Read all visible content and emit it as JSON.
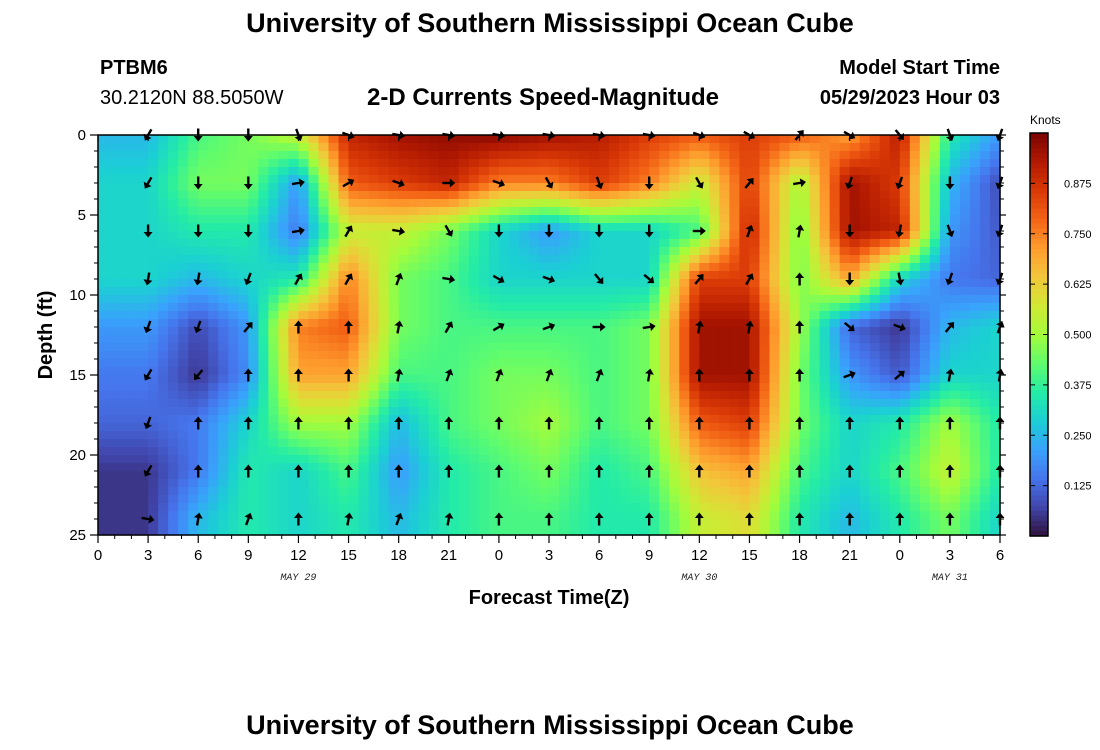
{
  "header": {
    "title": "University of Southern Mississippi Ocean Cube",
    "station": "PTBM6",
    "coords": "30.2120N  88.5050W",
    "plot_title": "2-D Currents Speed-Magnitude",
    "model_label": "Model Start Time",
    "model_time": "05/29/2023 Hour 03"
  },
  "footer": {
    "title": "University of Southern Mississippi Ocean Cube"
  },
  "colors": {
    "scale": [
      "#30123b",
      "#4145ab",
      "#4675ed",
      "#39a2fc",
      "#1bcfd4",
      "#24eca6",
      "#61fc6c",
      "#a4fc3b",
      "#d1e834",
      "#f3c63a",
      "#fe9b2d",
      "#f36315",
      "#d93806",
      "#b11901",
      "#7a0402"
    ]
  },
  "chart_data": {
    "type": "heatmap",
    "xlabel": "Forecast Time(Z)",
    "ylabel": "Depth (ft)",
    "x_ticks": [
      "0",
      "3",
      "6",
      "9",
      "12",
      "15",
      "18",
      "21",
      "0",
      "3",
      "6",
      "9",
      "12",
      "15",
      "18",
      "21",
      "0",
      "3",
      "6"
    ],
    "x_range_hours": [
      0,
      54
    ],
    "date_labels": [
      {
        "label": "MAY 29",
        "hour": 12
      },
      {
        "label": "MAY 30",
        "hour": 36
      },
      {
        "label": "MAY 31",
        "hour": 51
      }
    ],
    "y_ticks": [
      "0",
      "5",
      "10",
      "15",
      "20",
      "25"
    ],
    "ylim": [
      25,
      0
    ],
    "colorbar_title": "Knots",
    "colorbar_ticks": [
      "0.125",
      "0.250",
      "0.375",
      "0.500",
      "0.625",
      "0.750",
      "0.875"
    ],
    "colorbar_range": [
      0,
      1.0
    ],
    "depths": [
      0,
      3,
      6,
      9,
      12,
      15,
      18,
      21,
      24
    ],
    "hours": [
      3,
      6,
      9,
      12,
      15,
      18,
      21,
      24,
      27,
      30,
      33,
      36,
      39,
      42,
      45,
      48,
      51,
      54
    ],
    "speed": [
      [
        0.25,
        0.4,
        0.45,
        0.55,
        0.9,
        0.95,
        0.97,
        0.98,
        0.95,
        0.92,
        0.85,
        0.8,
        0.85,
        0.8,
        0.7,
        0.92,
        0.35,
        0.2
      ],
      [
        0.3,
        0.45,
        0.45,
        0.2,
        0.8,
        0.85,
        0.9,
        0.75,
        0.75,
        0.85,
        0.75,
        0.55,
        0.85,
        0.5,
        0.95,
        0.85,
        0.25,
        0.08
      ],
      [
        0.3,
        0.35,
        0.35,
        0.15,
        0.55,
        0.55,
        0.45,
        0.3,
        0.2,
        0.3,
        0.3,
        0.4,
        0.9,
        0.45,
        0.95,
        0.9,
        0.2,
        0.1
      ],
      [
        0.3,
        0.25,
        0.3,
        0.35,
        0.75,
        0.45,
        0.4,
        0.3,
        0.3,
        0.3,
        0.3,
        0.85,
        0.85,
        0.45,
        0.7,
        0.3,
        0.15,
        0.12
      ],
      [
        0.2,
        0.08,
        0.2,
        0.75,
        0.8,
        0.45,
        0.4,
        0.4,
        0.4,
        0.4,
        0.45,
        0.95,
        0.95,
        0.5,
        0.12,
        0.05,
        0.25,
        0.3
      ],
      [
        0.15,
        0.05,
        0.18,
        0.7,
        0.7,
        0.4,
        0.4,
        0.45,
        0.45,
        0.4,
        0.45,
        0.95,
        0.95,
        0.45,
        0.2,
        0.1,
        0.3,
        0.3
      ],
      [
        0.12,
        0.15,
        0.3,
        0.5,
        0.5,
        0.25,
        0.4,
        0.45,
        0.5,
        0.4,
        0.45,
        0.8,
        0.85,
        0.45,
        0.3,
        0.35,
        0.5,
        0.35
      ],
      [
        0.05,
        0.15,
        0.35,
        0.3,
        0.4,
        0.2,
        0.35,
        0.4,
        0.45,
        0.35,
        0.4,
        0.65,
        0.7,
        0.4,
        0.3,
        0.4,
        0.55,
        0.35
      ],
      [
        0.05,
        0.25,
        0.35,
        0.3,
        0.35,
        0.25,
        0.35,
        0.4,
        0.4,
        0.35,
        0.35,
        0.55,
        0.6,
        0.35,
        0.25,
        0.35,
        0.45,
        0.3
      ]
    ],
    "direction_deg": [
      [
        210,
        180,
        180,
        160,
        110,
        100,
        100,
        100,
        100,
        100,
        100,
        110,
        120,
        40,
        120,
        140,
        160,
        200
      ],
      [
        210,
        180,
        180,
        80,
        60,
        110,
        90,
        110,
        150,
        160,
        180,
        150,
        40,
        80,
        200,
        200,
        180,
        200
      ],
      [
        180,
        180,
        180,
        80,
        30,
        100,
        150,
        180,
        180,
        180,
        180,
        90,
        20,
        10,
        180,
        190,
        160,
        200
      ],
      [
        190,
        190,
        200,
        30,
        30,
        20,
        100,
        120,
        110,
        140,
        130,
        40,
        30,
        0,
        180,
        170,
        200,
        200
      ],
      [
        200,
        200,
        40,
        0,
        0,
        10,
        30,
        60,
        70,
        90,
        80,
        10,
        10,
        0,
        130,
        110,
        40,
        20
      ],
      [
        210,
        220,
        0,
        0,
        0,
        10,
        20,
        20,
        20,
        20,
        10,
        0,
        0,
        0,
        70,
        50,
        10,
        10
      ],
      [
        200,
        0,
        0,
        0,
        0,
        0,
        0,
        0,
        0,
        0,
        0,
        0,
        0,
        0,
        0,
        0,
        0,
        0
      ],
      [
        210,
        0,
        0,
        0,
        0,
        0,
        0,
        0,
        0,
        0,
        0,
        0,
        0,
        0,
        0,
        0,
        0,
        0
      ],
      [
        100,
        10,
        20,
        0,
        10,
        20,
        10,
        0,
        0,
        0,
        0,
        0,
        0,
        0,
        0,
        0,
        0,
        0
      ]
    ]
  }
}
